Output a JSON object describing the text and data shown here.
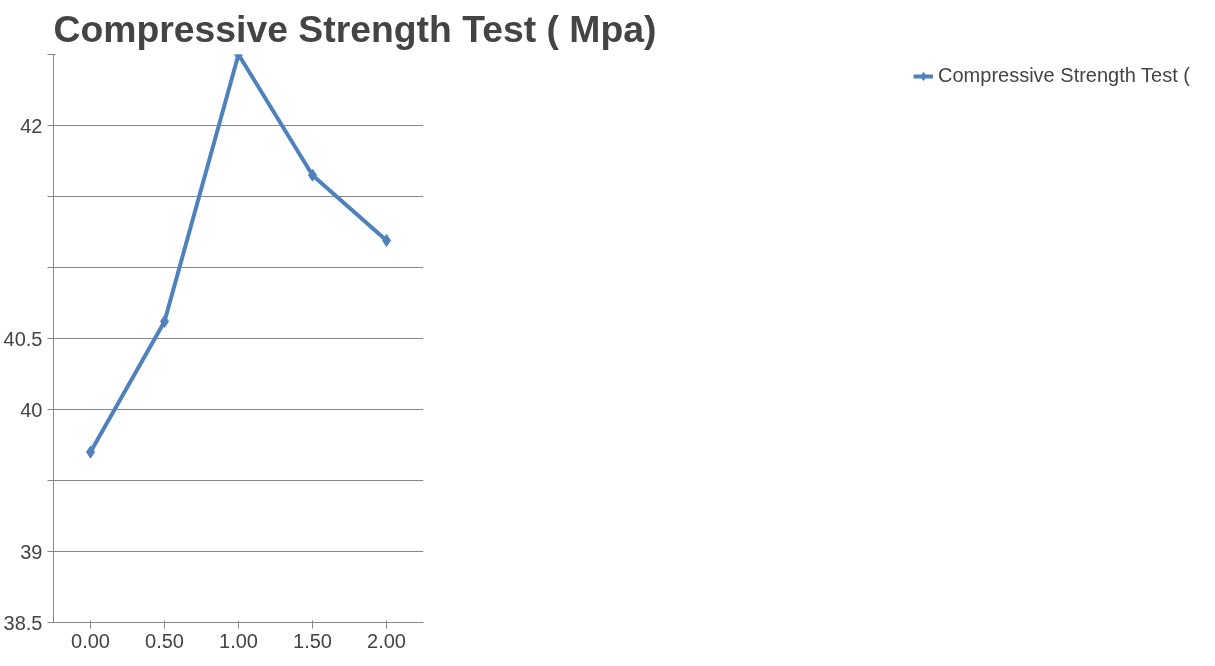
{
  "chart_data": {
    "type": "line",
    "title": "Compressive Strength Test ( Mpa)",
    "categories": [
      "0.00",
      "0.50",
      "1.00",
      "1.50",
      "2.00"
    ],
    "series": [
      {
        "name": "Compressive Strength Test (",
        "color": "#4f81bd",
        "values": [
          39.7,
          40.62,
          42.5,
          41.65,
          41.19
        ]
      }
    ],
    "ylim": [
      38.5,
      42.5
    ],
    "yticks": [
      38.5,
      39,
      {
        "value": 39.5,
        "label": null
      },
      40,
      40.5,
      {
        "value": 41,
        "label": null
      },
      {
        "value": 41.5,
        "label": null
      },
      42,
      {
        "value": 42.5,
        "label": null
      }
    ],
    "grid": "y",
    "legend": "right",
    "marker": "diamond",
    "line_style": "solid"
  }
}
